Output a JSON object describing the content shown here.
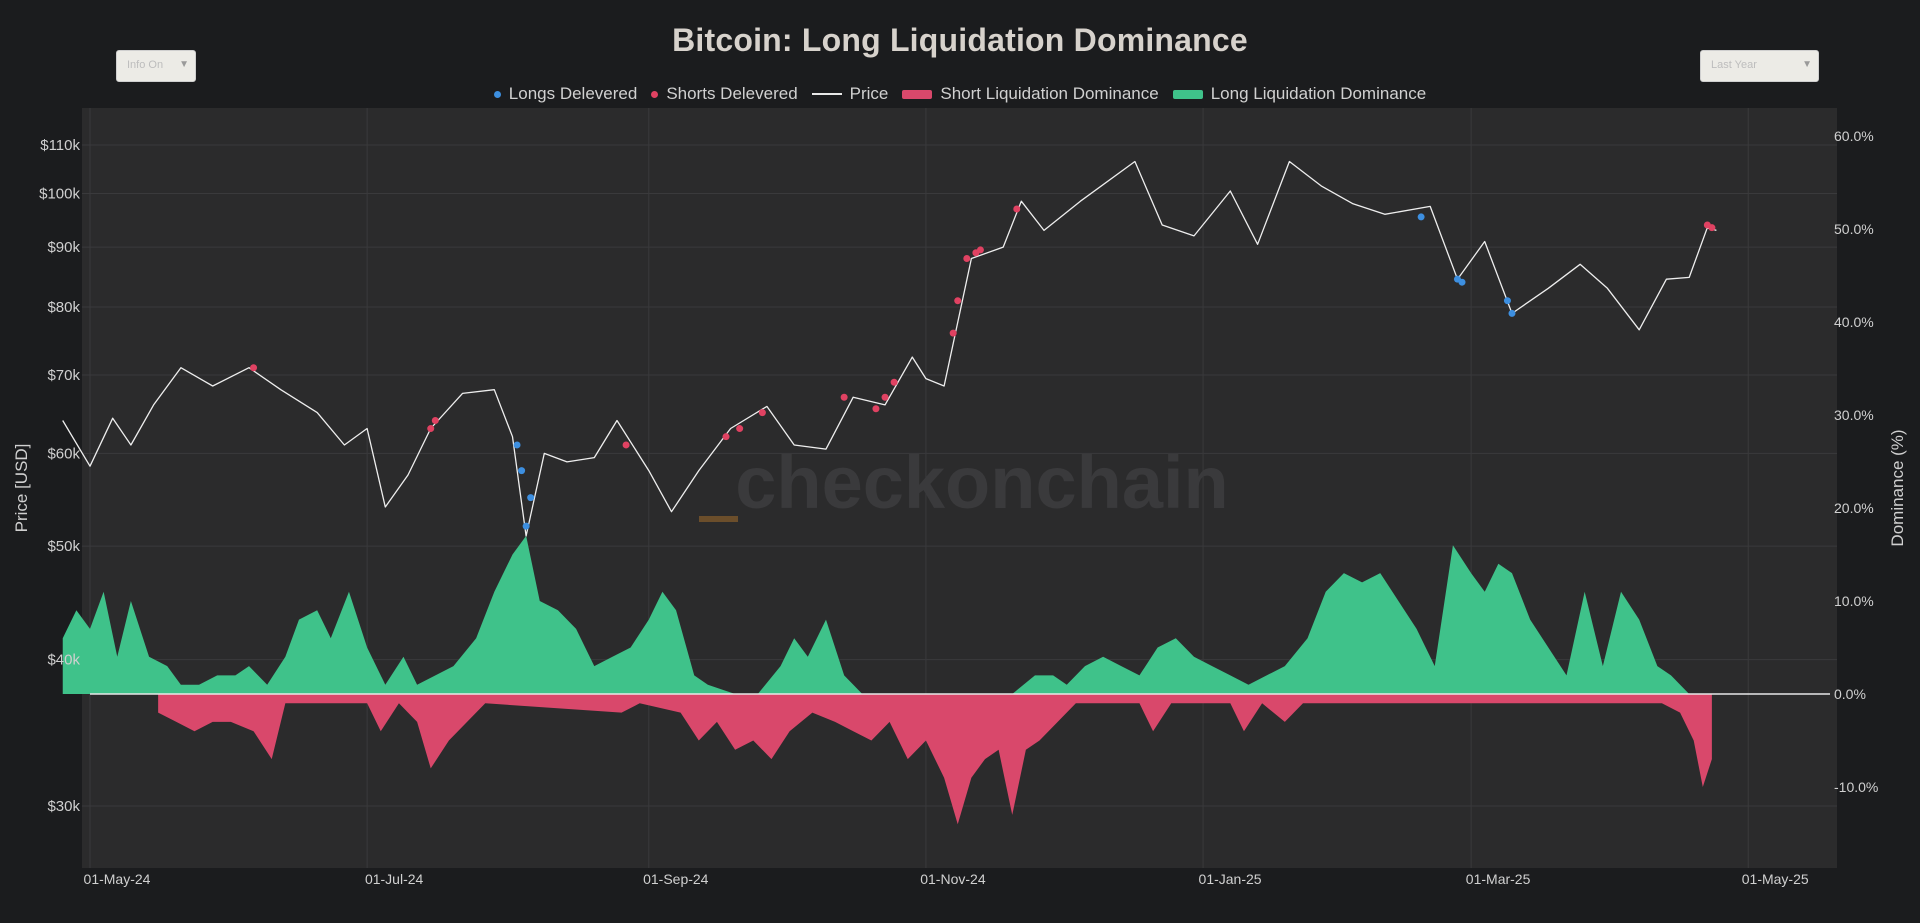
{
  "chart_data": {
    "type": "line",
    "title": "Bitcoin: Long Liquidation Dominance",
    "watermark": "checkonchain",
    "controls": {
      "left_dropdown": "Info On",
      "right_dropdown": "Last Year"
    },
    "yaxis_left": {
      "label": "Price [USD]",
      "scale": "log",
      "range": [
        26000,
        122000
      ],
      "ticks": [
        30000,
        40000,
        50000,
        60000,
        70000,
        80000,
        90000,
        100000,
        110000
      ],
      "tick_labels": [
        "$30k",
        "$40k",
        "$50k",
        "$60k",
        "$70k",
        "$80k",
        "$90k",
        "$100k",
        "$110k"
      ]
    },
    "yaxis_right": {
      "label": "Dominance (%)",
      "scale": "linear",
      "range": [
        -18.5,
        61.5
      ],
      "ticks": [
        -10,
        0,
        10,
        20,
        30,
        40,
        50,
        60
      ],
      "tick_labels": [
        "-10.0%",
        "0.0%",
        "10.0%",
        "20.0%",
        "30.0%",
        "40.0%",
        "50.0%",
        "60.0%"
      ]
    },
    "xaxis": {
      "range": [
        "2024-05-01",
        "2025-05-19"
      ],
      "ticks": [
        "2024-05-01",
        "2024-07-01",
        "2024-09-01",
        "2024-11-01",
        "2025-01-01",
        "2025-03-01",
        "2025-05-01"
      ],
      "tick_labels": [
        "01-May-24",
        "01-Jul-24",
        "01-Sep-24",
        "01-Nov-24",
        "01-Jan-25",
        "01-Mar-25",
        "01-May-25"
      ]
    },
    "grid": true,
    "legend_position": "top-center",
    "colors": {
      "longs_delevered": "#3d8fe0",
      "shorts_delevered": "#e04262",
      "price": "#eeeeee",
      "short_dominance": "#d9486b",
      "long_dominance": "#3fc28a",
      "plot_bg": "#2b2b2c",
      "grid": "#3a3a3c"
    },
    "series": [
      {
        "name": "Price",
        "type": "line",
        "points": [
          [
            "2024-04-25",
            64000
          ],
          [
            "2024-05-01",
            58500
          ],
          [
            "2024-05-06",
            64300
          ],
          [
            "2024-05-10",
            61000
          ],
          [
            "2024-05-15",
            66000
          ],
          [
            "2024-05-21",
            71000
          ],
          [
            "2024-05-28",
            68500
          ],
          [
            "2024-06-05",
            71000
          ],
          [
            "2024-06-12",
            68000
          ],
          [
            "2024-06-20",
            65000
          ],
          [
            "2024-06-26",
            61000
          ],
          [
            "2024-07-01",
            63000
          ],
          [
            "2024-07-05",
            54000
          ],
          [
            "2024-07-10",
            57500
          ],
          [
            "2024-07-15",
            63000
          ],
          [
            "2024-07-22",
            67500
          ],
          [
            "2024-07-29",
            68000
          ],
          [
            "2024-08-02",
            62000
          ],
          [
            "2024-08-05",
            51000
          ],
          [
            "2024-08-09",
            60000
          ],
          [
            "2024-08-14",
            59000
          ],
          [
            "2024-08-20",
            59500
          ],
          [
            "2024-08-25",
            64000
          ],
          [
            "2024-09-01",
            58000
          ],
          [
            "2024-09-06",
            53500
          ],
          [
            "2024-09-12",
            58000
          ],
          [
            "2024-09-19",
            63000
          ],
          [
            "2024-09-27",
            65800
          ],
          [
            "2024-10-03",
            61000
          ],
          [
            "2024-10-10",
            60500
          ],
          [
            "2024-10-16",
            67000
          ],
          [
            "2024-10-23",
            66000
          ],
          [
            "2024-10-29",
            72500
          ],
          [
            "2024-11-01",
            69500
          ],
          [
            "2024-11-05",
            68500
          ],
          [
            "2024-11-11",
            88000
          ],
          [
            "2024-11-18",
            90000
          ],
          [
            "2024-11-22",
            98500
          ],
          [
            "2024-11-27",
            93000
          ],
          [
            "2024-12-05",
            98500
          ],
          [
            "2024-12-17",
            106500
          ],
          [
            "2024-12-23",
            94000
          ],
          [
            "2024-12-30",
            92000
          ],
          [
            "2025-01-07",
            100500
          ],
          [
            "2025-01-13",
            90500
          ],
          [
            "2025-01-20",
            106500
          ],
          [
            "2025-01-27",
            101500
          ],
          [
            "2025-02-03",
            98000
          ],
          [
            "2025-02-10",
            96000
          ],
          [
            "2025-02-20",
            97500
          ],
          [
            "2025-02-26",
            84500
          ],
          [
            "2025-03-04",
            91000
          ],
          [
            "2025-03-10",
            79000
          ],
          [
            "2025-03-18",
            83000
          ],
          [
            "2025-03-25",
            87000
          ],
          [
            "2025-03-31",
            83000
          ],
          [
            "2025-04-07",
            76500
          ],
          [
            "2025-04-13",
            84500
          ],
          [
            "2025-04-18",
            84800
          ],
          [
            "2025-04-22",
            93500
          ],
          [
            "2025-04-24",
            93000
          ]
        ]
      },
      {
        "name": "Longs Delevered",
        "type": "scatter",
        "points": [
          [
            "2024-08-03",
            61000
          ],
          [
            "2024-08-04",
            58000
          ],
          [
            "2024-08-05",
            52000
          ],
          [
            "2024-08-06",
            55000
          ],
          [
            "2025-02-18",
            95500
          ],
          [
            "2025-02-26",
            84500
          ],
          [
            "2025-02-27",
            84000
          ],
          [
            "2025-03-09",
            81000
          ],
          [
            "2025-03-10",
            79000
          ]
        ]
      },
      {
        "name": "Shorts Delevered",
        "type": "scatter",
        "points": [
          [
            "2024-06-06",
            71000
          ],
          [
            "2024-07-15",
            63000
          ],
          [
            "2024-07-16",
            64000
          ],
          [
            "2024-08-27",
            61000
          ],
          [
            "2024-09-18",
            62000
          ],
          [
            "2024-09-21",
            63000
          ],
          [
            "2024-09-26",
            65000
          ],
          [
            "2024-10-14",
            67000
          ],
          [
            "2024-10-21",
            65500
          ],
          [
            "2024-10-23",
            67000
          ],
          [
            "2024-10-25",
            69000
          ],
          [
            "2024-11-07",
            76000
          ],
          [
            "2024-11-08",
            81000
          ],
          [
            "2024-11-10",
            88000
          ],
          [
            "2024-11-12",
            89000
          ],
          [
            "2024-11-13",
            89500
          ],
          [
            "2024-11-21",
            97000
          ],
          [
            "2025-04-22",
            94000
          ],
          [
            "2025-04-23",
            93500
          ]
        ]
      },
      {
        "name": "Long Liquidation Dominance",
        "type": "area",
        "points": [
          [
            "2024-04-25",
            6
          ],
          [
            "2024-04-28",
            9
          ],
          [
            "2024-05-01",
            7
          ],
          [
            "2024-05-04",
            11
          ],
          [
            "2024-05-07",
            4
          ],
          [
            "2024-05-10",
            10
          ],
          [
            "2024-05-14",
            4
          ],
          [
            "2024-05-18",
            3
          ],
          [
            "2024-05-21",
            1
          ],
          [
            "2024-05-25",
            1
          ],
          [
            "2024-05-29",
            2
          ],
          [
            "2024-06-02",
            2
          ],
          [
            "2024-06-05",
            3
          ],
          [
            "2024-06-09",
            1
          ],
          [
            "2024-06-13",
            4
          ],
          [
            "2024-06-16",
            8
          ],
          [
            "2024-06-20",
            9
          ],
          [
            "2024-06-23",
            6
          ],
          [
            "2024-06-27",
            11
          ],
          [
            "2024-07-01",
            5
          ],
          [
            "2024-07-05",
            1
          ],
          [
            "2024-07-09",
            4
          ],
          [
            "2024-07-12",
            1
          ],
          [
            "2024-07-20",
            3
          ],
          [
            "2024-07-25",
            6
          ],
          [
            "2024-07-29",
            11
          ],
          [
            "2024-08-02",
            15
          ],
          [
            "2024-08-05",
            17
          ],
          [
            "2024-08-08",
            10
          ],
          [
            "2024-08-12",
            9
          ],
          [
            "2024-08-16",
            7
          ],
          [
            "2024-08-20",
            3
          ],
          [
            "2024-08-24",
            4
          ],
          [
            "2024-08-28",
            5
          ],
          [
            "2024-09-01",
            8
          ],
          [
            "2024-09-04",
            11
          ],
          [
            "2024-09-07",
            9
          ],
          [
            "2024-09-11",
            2
          ],
          [
            "2024-09-14",
            1
          ],
          [
            "2024-09-20",
            0
          ],
          [
            "2024-09-25",
            0
          ],
          [
            "2024-09-30",
            3
          ],
          [
            "2024-10-03",
            6
          ],
          [
            "2024-10-06",
            4
          ],
          [
            "2024-10-10",
            8
          ],
          [
            "2024-10-14",
            2
          ],
          [
            "2024-10-18",
            0
          ],
          [
            "2024-10-26",
            0
          ],
          [
            "2024-11-01",
            0
          ],
          [
            "2024-11-10",
            0
          ],
          [
            "2024-11-20",
            0
          ],
          [
            "2024-11-25",
            2
          ],
          [
            "2024-11-29",
            2
          ],
          [
            "2024-12-02",
            1
          ],
          [
            "2024-12-06",
            3
          ],
          [
            "2024-12-10",
            4
          ],
          [
            "2024-12-14",
            3
          ],
          [
            "2024-12-18",
            2
          ],
          [
            "2024-12-22",
            5
          ],
          [
            "2024-12-26",
            6
          ],
          [
            "2024-12-30",
            4
          ],
          [
            "2025-01-03",
            3
          ],
          [
            "2025-01-07",
            2
          ],
          [
            "2025-01-11",
            1
          ],
          [
            "2025-01-15",
            2
          ],
          [
            "2025-01-19",
            3
          ],
          [
            "2025-01-24",
            6
          ],
          [
            "2025-01-28",
            11
          ],
          [
            "2025-02-01",
            13
          ],
          [
            "2025-02-05",
            12
          ],
          [
            "2025-02-09",
            13
          ],
          [
            "2025-02-13",
            10
          ],
          [
            "2025-02-17",
            7
          ],
          [
            "2025-02-21",
            3
          ],
          [
            "2025-02-25",
            16
          ],
          [
            "2025-03-01",
            13
          ],
          [
            "2025-03-04",
            11
          ],
          [
            "2025-03-07",
            14
          ],
          [
            "2025-03-10",
            13
          ],
          [
            "2025-03-14",
            8
          ],
          [
            "2025-03-18",
            5
          ],
          [
            "2025-03-22",
            2
          ],
          [
            "2025-03-26",
            11
          ],
          [
            "2025-03-30",
            3
          ],
          [
            "2025-04-03",
            11
          ],
          [
            "2025-04-07",
            8
          ],
          [
            "2025-04-11",
            3
          ],
          [
            "2025-04-14",
            2
          ],
          [
            "2025-04-18",
            0
          ],
          [
            "2025-05-19",
            0
          ]
        ]
      },
      {
        "name": "Short Liquidation Dominance",
        "type": "area",
        "points": [
          [
            "2024-05-16",
            -2
          ],
          [
            "2024-05-20",
            -3
          ],
          [
            "2024-05-24",
            -4
          ],
          [
            "2024-05-28",
            -3
          ],
          [
            "2024-06-01",
            -3
          ],
          [
            "2024-06-06",
            -4
          ],
          [
            "2024-06-10",
            -7
          ],
          [
            "2024-06-13",
            -1
          ],
          [
            "2024-07-01",
            -1
          ],
          [
            "2024-07-04",
            -4
          ],
          [
            "2024-07-08",
            -1
          ],
          [
            "2024-07-12",
            -3
          ],
          [
            "2024-07-15",
            -8
          ],
          [
            "2024-07-19",
            -5
          ],
          [
            "2024-07-23",
            -3
          ],
          [
            "2024-07-27",
            -1
          ],
          [
            "2024-08-26",
            -2
          ],
          [
            "2024-08-30",
            -1
          ],
          [
            "2024-09-08",
            -2
          ],
          [
            "2024-09-12",
            -5
          ],
          [
            "2024-09-16",
            -3
          ],
          [
            "2024-09-20",
            -6
          ],
          [
            "2024-09-24",
            -5
          ],
          [
            "2024-09-28",
            -7
          ],
          [
            "2024-10-02",
            -4
          ],
          [
            "2024-10-07",
            -2
          ],
          [
            "2024-10-12",
            -3
          ],
          [
            "2024-10-16",
            -4
          ],
          [
            "2024-10-20",
            -5
          ],
          [
            "2024-10-24",
            -3
          ],
          [
            "2024-10-28",
            -7
          ],
          [
            "2024-11-01",
            -5
          ],
          [
            "2024-11-05",
            -9
          ],
          [
            "2024-11-08",
            -14
          ],
          [
            "2024-11-11",
            -9
          ],
          [
            "2024-11-14",
            -7
          ],
          [
            "2024-11-17",
            -6
          ],
          [
            "2024-11-20",
            -13
          ],
          [
            "2024-11-23",
            -6
          ],
          [
            "2024-11-26",
            -5
          ],
          [
            "2024-11-30",
            -3
          ],
          [
            "2024-12-04",
            -1
          ],
          [
            "2024-12-18",
            -1
          ],
          [
            "2024-12-21",
            -4
          ],
          [
            "2024-12-25",
            -1
          ],
          [
            "2025-01-07",
            -1
          ],
          [
            "2025-01-10",
            -4
          ],
          [
            "2025-01-14",
            -1
          ],
          [
            "2025-01-19",
            -3
          ],
          [
            "2025-01-23",
            -1
          ],
          [
            "2025-03-29",
            -1
          ],
          [
            "2025-04-01",
            -1
          ],
          [
            "2025-04-12",
            -1
          ],
          [
            "2025-04-16",
            -2
          ],
          [
            "2025-04-19",
            -5
          ],
          [
            "2025-04-21",
            -10
          ],
          [
            "2025-04-23",
            -7
          ]
        ]
      }
    ]
  }
}
